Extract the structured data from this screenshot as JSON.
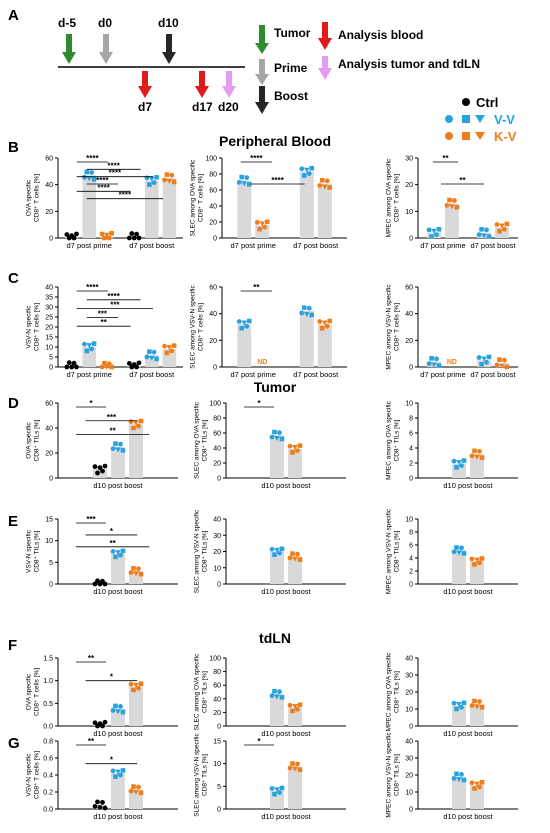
{
  "figure": {
    "panel_letters": [
      "A",
      "B",
      "C",
      "D",
      "E",
      "F",
      "G"
    ],
    "timeline": {
      "top_labels": [
        "d-5",
        "d0",
        "d10"
      ],
      "bottom_labels": [
        "d7",
        "d17",
        "d20"
      ],
      "legend_events": [
        "Tumor",
        "Prime",
        "Boost"
      ],
      "legend_analysis": [
        "Analysis blood",
        "Analysis tumor and tdLN"
      ]
    },
    "group_legend": [
      "Ctrl",
      "V-V",
      "K-V"
    ],
    "section_titles": [
      "Peripheral Blood",
      "Tumor",
      "tdLN"
    ],
    "colors": {
      "ctrl": "#000000",
      "vv": "#29a3e0",
      "kv": "#f07d1b",
      "bar": "#d9d9d9",
      "green": "#2e8b2e",
      "grey": "#a6a6a6",
      "black": "#262626",
      "red": "#e01a1a",
      "violet": "#e39cf2",
      "slec": "#e01a1a",
      "mpec": "#1a9e1a"
    }
  },
  "chart_data": [
    {
      "id": "B1",
      "type": "bar",
      "ylabel": "OVA specific CD8⁺ T cells [%]",
      "ylim": [
        0,
        60
      ],
      "yticks": [
        "0",
        "20",
        "40",
        "60"
      ],
      "categories": [
        "d7 post prime",
        "d7 post boost"
      ],
      "series": [
        {
          "name": "Ctrl",
          "values": [
            0.5,
            0.8
          ]
        },
        {
          "name": "V-V",
          "values": [
            47,
            43
          ]
        },
        {
          "name": "K-V",
          "values": [
            1,
            45
          ]
        }
      ],
      "significance": [
        "****",
        "****",
        "****",
        "****",
        "****",
        "****"
      ]
    },
    {
      "id": "B2",
      "type": "bar",
      "ylabel": "SLEC among OVA specific CD8⁺ T cells [%]",
      "ylim": [
        0,
        100
      ],
      "yticks": [
        "0",
        "20",
        "40",
        "60",
        "80",
        "100"
      ],
      "categories": [
        "d7 post prime",
        "d7 post boost"
      ],
      "series": [
        {
          "name": "V-V",
          "values": [
            72,
            83
          ]
        },
        {
          "name": "K-V",
          "values": [
            16,
            68
          ]
        }
      ],
      "significance": [
        "****",
        "****"
      ]
    },
    {
      "id": "B3",
      "type": "bar",
      "ylabel": "MPEC among OVA specific CD8⁺ T cells [%]",
      "ylim": [
        0,
        30
      ],
      "yticks": [
        "0",
        "10",
        "20",
        "30"
      ],
      "categories": [
        "d7 post prime",
        "d7 post boost"
      ],
      "series": [
        {
          "name": "V-V",
          "values": [
            2,
            2
          ]
        },
        {
          "name": "K-V",
          "values": [
            13,
            4
          ]
        }
      ],
      "significance": [
        "**",
        "**"
      ]
    },
    {
      "id": "C1",
      "type": "bar",
      "ylabel": "VSV-N specific CD8⁺ T cells [%]",
      "ylim": [
        0,
        40
      ],
      "yticks": [
        "0",
        "5",
        "10",
        "15",
        "20",
        "25",
        "30",
        "35",
        "40"
      ],
      "categories": [
        "d7 post prime",
        "d7 post boost"
      ],
      "series": [
        {
          "name": "Ctrl",
          "values": [
            0.5,
            0.4
          ]
        },
        {
          "name": "V-V",
          "values": [
            10,
            6
          ]
        },
        {
          "name": "K-V",
          "values": [
            0.2,
            9
          ]
        }
      ],
      "significance": [
        "****",
        "****",
        "***",
        "***",
        "**"
      ]
    },
    {
      "id": "C2",
      "type": "bar",
      "ylabel": "SLEC among VSV-N specific CD8⁺ T cells [%]",
      "ylim": [
        0,
        60
      ],
      "yticks": [
        "0",
        "20",
        "40",
        "60"
      ],
      "categories": [
        "d7 post prime",
        "d7 post boost"
      ],
      "series": [
        {
          "name": "V-V",
          "values": [
            32,
            42
          ]
        },
        {
          "name": "K-V",
          "values": [
            null,
            32
          ]
        }
      ],
      "significance": [
        "**"
      ],
      "annotations": [
        "ND"
      ]
    },
    {
      "id": "C3",
      "type": "bar",
      "ylabel": "MPEC among VSV-N specific CD8⁺ T cells [%]",
      "ylim": [
        0,
        60
      ],
      "yticks": [
        "0",
        "20",
        "40",
        "60"
      ],
      "categories": [
        "d7 post prime",
        "d7 post boost"
      ],
      "series": [
        {
          "name": "V-V",
          "values": [
            4,
            5
          ]
        },
        {
          "name": "K-V",
          "values": [
            null,
            3
          ]
        }
      ],
      "annotations": [
        "ND"
      ]
    },
    {
      "id": "D1",
      "type": "bar",
      "ylabel": "OVA specific CD8⁺ TILs [%]",
      "ylim": [
        0,
        60
      ],
      "yticks": [
        "0",
        "20",
        "40",
        "60"
      ],
      "categories": [
        "d10 post boost"
      ],
      "series": [
        {
          "name": "Ctrl",
          "values": [
            7
          ]
        },
        {
          "name": "V-V",
          "values": [
            25
          ]
        },
        {
          "name": "K-V",
          "values": [
            43
          ]
        }
      ],
      "significance": [
        "*",
        "***",
        "**"
      ]
    },
    {
      "id": "D2",
      "type": "bar",
      "ylabel": "SLEC among OVA specific CD8⁺ TILs [%]",
      "ylim": [
        0,
        100
      ],
      "yticks": [
        "0",
        "20",
        "40",
        "60",
        "80",
        "100"
      ],
      "categories": [
        "d10 post boost"
      ],
      "series": [
        {
          "name": "V-V",
          "values": [
            57
          ]
        },
        {
          "name": "K-V",
          "values": [
            39
          ]
        }
      ],
      "significance": [
        "*"
      ]
    },
    {
      "id": "D3",
      "type": "bar",
      "ylabel": "MPEC among OVA specific CD8⁺ TILs [%]",
      "ylim": [
        0,
        10
      ],
      "yticks": [
        "0",
        "2",
        "4",
        "6",
        "8",
        "10"
      ],
      "categories": [
        "d10 post boost"
      ],
      "series": [
        {
          "name": "V-V",
          "values": [
            1.9
          ]
        },
        {
          "name": "K-V",
          "values": [
            3.2
          ]
        }
      ]
    },
    {
      "id": "E1",
      "type": "bar",
      "ylabel": "VSV-N specific CD8⁺ TILs [%]",
      "ylim": [
        0,
        15
      ],
      "yticks": [
        "0",
        "5",
        "10",
        "15"
      ],
      "categories": [
        "d10 post boost"
      ],
      "series": [
        {
          "name": "Ctrl",
          "values": [
            0.1
          ]
        },
        {
          "name": "V-V",
          "values": [
            7
          ]
        },
        {
          "name": "K-V",
          "values": [
            3
          ]
        }
      ],
      "significance": [
        "***",
        "*",
        "**"
      ]
    },
    {
      "id": "E2",
      "type": "bar",
      "ylabel": "SLEC among VSV-N specific CD8⁺ TILs [%]",
      "ylim": [
        0,
        40
      ],
      "yticks": [
        "0",
        "10",
        "20",
        "30",
        "40"
      ],
      "categories": [
        "d10 post boost"
      ],
      "series": [
        {
          "name": "V-V",
          "values": [
            20
          ]
        },
        {
          "name": "K-V",
          "values": [
            17
          ]
        }
      ]
    },
    {
      "id": "E3",
      "type": "bar",
      "ylabel": "MPEC among VSV-N specific CD8⁺ TILs [%]",
      "ylim": [
        0,
        10
      ],
      "yticks": [
        "0",
        "2",
        "4",
        "6",
        "8",
        "10"
      ],
      "categories": [
        "d10 post boost"
      ],
      "series": [
        {
          "name": "V-V",
          "values": [
            5.2
          ]
        },
        {
          "name": "K-V",
          "values": [
            3.5
          ]
        }
      ]
    },
    {
      "id": "F1",
      "type": "bar",
      "ylabel": "OVA specific CD8⁺ T cells [%]",
      "ylim": [
        0,
        1.5
      ],
      "yticks": [
        "0.0",
        "0.5",
        "1.0",
        "1.5"
      ],
      "categories": [
        "d10 post boost"
      ],
      "series": [
        {
          "name": "Ctrl",
          "values": [
            0.02
          ]
        },
        {
          "name": "V-V",
          "values": [
            0.38
          ]
        },
        {
          "name": "K-V",
          "values": [
            0.87
          ]
        }
      ],
      "significance": [
        "**",
        "*"
      ]
    },
    {
      "id": "F2",
      "type": "bar",
      "ylabel": "SLEC among OVA specific CD8⁺ TILs [%]",
      "ylim": [
        0,
        100
      ],
      "yticks": [
        "0",
        "20",
        "40",
        "60",
        "80",
        "100"
      ],
      "categories": [
        "d10 post boost"
      ],
      "series": [
        {
          "name": "V-V",
          "values": [
            47
          ]
        },
        {
          "name": "K-V",
          "values": [
            27
          ]
        }
      ]
    },
    {
      "id": "F3",
      "type": "bar",
      "ylabel": "MPEC among OVA specific CD8⁺ TILs [%]",
      "ylim": [
        0,
        40
      ],
      "yticks": [
        "0",
        "10",
        "20",
        "30",
        "40"
      ],
      "categories": [
        "d10 post boost"
      ],
      "series": [
        {
          "name": "V-V",
          "values": [
            12
          ]
        },
        {
          "name": "K-V",
          "values": [
            13
          ]
        }
      ]
    },
    {
      "id": "G1",
      "type": "bar",
      "ylabel": "VSV-N specific CD8⁺ T cells [%]",
      "ylim": [
        0,
        0.8
      ],
      "yticks": [
        "0.0",
        "0.2",
        "0.4",
        "0.6",
        "0.8"
      ],
      "categories": [
        "d10 post boost"
      ],
      "series": [
        {
          "name": "Ctrl",
          "values": [
            0.05
          ]
        },
        {
          "name": "V-V",
          "values": [
            0.42
          ]
        },
        {
          "name": "K-V",
          "values": [
            0.23
          ]
        }
      ],
      "significance": [
        "**",
        "*"
      ]
    },
    {
      "id": "G2",
      "type": "bar",
      "ylabel": "SLEC among VSV-N specific CD8⁺ TILs [%]",
      "ylim": [
        0,
        15
      ],
      "yticks": [
        "0",
        "5",
        "10",
        "15"
      ],
      "categories": [
        "d10 post boost"
      ],
      "series": [
        {
          "name": "V-V",
          "values": [
            4
          ]
        },
        {
          "name": "K-V",
          "values": [
            9.4
          ]
        }
      ],
      "significance": [
        "*"
      ]
    },
    {
      "id": "G3",
      "type": "bar",
      "ylabel": "MPEC among VSV-N specific CD8⁺ TILs [%]",
      "ylim": [
        0,
        40
      ],
      "yticks": [
        "0",
        "10",
        "20",
        "30",
        "40"
      ],
      "categories": [
        "d10 post boost"
      ],
      "series": [
        {
          "name": "V-V",
          "values": [
            19
          ]
        },
        {
          "name": "K-V",
          "values": [
            14
          ]
        }
      ]
    }
  ]
}
